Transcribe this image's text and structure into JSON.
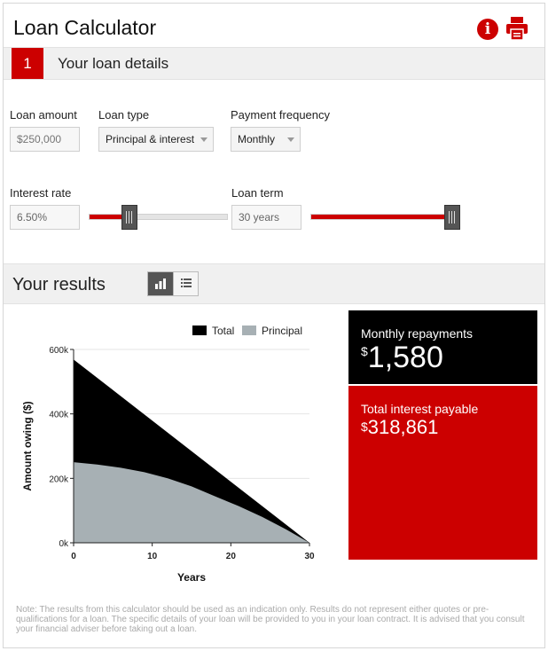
{
  "header": {
    "title": "Loan Calculator",
    "info_icon": "info-icon",
    "print_icon": "printer-icon",
    "accent": "#cc0000"
  },
  "section1": {
    "step_number": "1",
    "title": "Your loan details"
  },
  "loan_amount": {
    "label": "Loan amount",
    "placeholder": "$250,000"
  },
  "loan_type": {
    "label": "Loan type",
    "selected": "Principal & interest"
  },
  "payment_frequency": {
    "label": "Payment frequency",
    "selected": "Monthly"
  },
  "interest_rate": {
    "label": "Interest rate",
    "value": "6.50%",
    "slider_fraction": 0.29
  },
  "loan_term": {
    "label": "Loan term",
    "value": "30 years",
    "slider_fraction": 1.0
  },
  "results": {
    "title": "Your results",
    "chart_view_icon": "bar-chart-icon",
    "table_view_icon": "list-icon"
  },
  "chart_data": {
    "type": "area",
    "xlabel": "Years",
    "ylabel": "Amount owing ($)",
    "xlim": [
      0,
      30
    ],
    "ylim": [
      0,
      600000
    ],
    "x_ticks": [
      "0",
      "10",
      "20",
      "30"
    ],
    "y_ticks": [
      "0k",
      "200k",
      "400k",
      "600k"
    ],
    "legend_position": "top-right",
    "series": [
      {
        "name": "Total",
        "color": "#000000",
        "x": [
          0,
          30
        ],
        "values": [
          568800,
          0
        ]
      },
      {
        "name": "Principal",
        "color": "#a7b0b4",
        "x": [
          0,
          3,
          6,
          9,
          12,
          15,
          18,
          21,
          24,
          27,
          30
        ],
        "values": [
          250000,
          243000,
          233000,
          219000,
          200000,
          175000,
          144000,
          114000,
          80000,
          42000,
          0
        ]
      }
    ]
  },
  "monthly": {
    "label": "Monthly repayments",
    "currency": "$",
    "value": "1,580"
  },
  "interest": {
    "label": "Total interest payable",
    "currency": "$",
    "value": "318,861"
  },
  "note": "Note: The results from this calculator should be used as an indication only. Results do not represent either quotes or pre-qualifications for a loan. The specific details of your loan will be provided to you in your loan contract. It is advised that you consult your financial adviser before taking out a loan."
}
